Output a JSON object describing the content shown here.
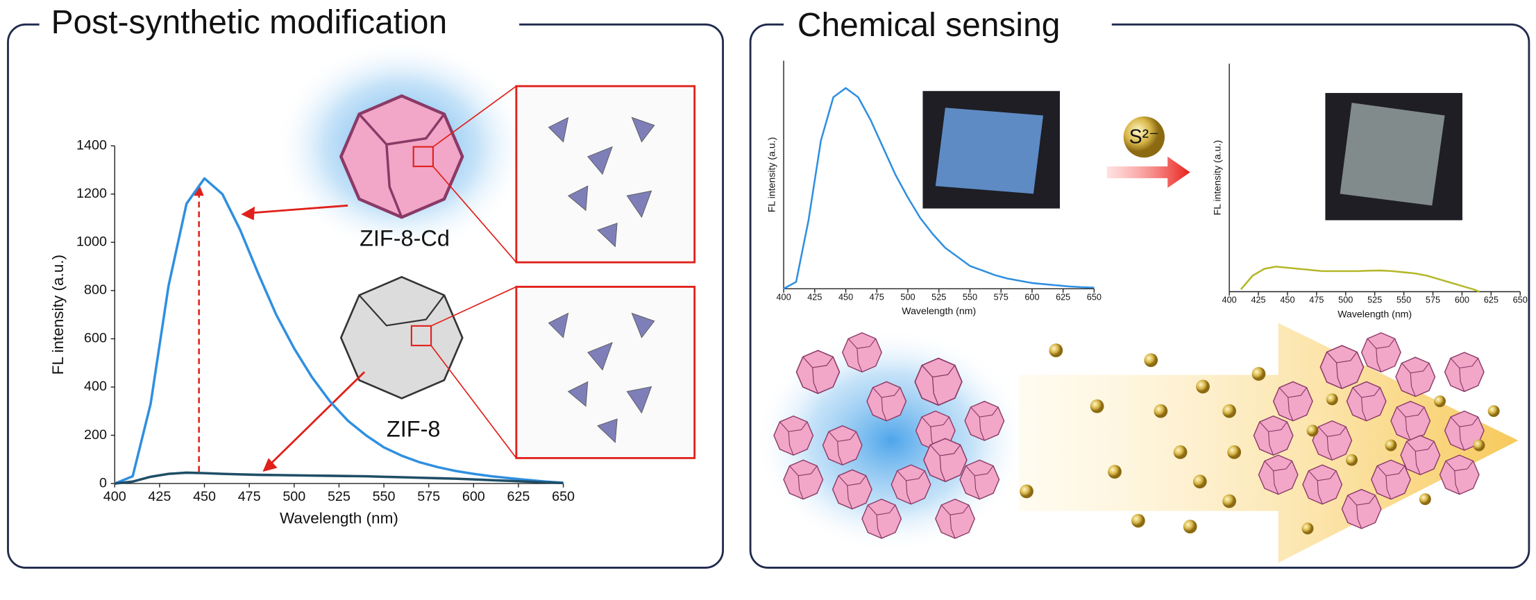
{
  "panels": [
    {
      "title": "Post-synthetic modification",
      "labels": [
        "ZIF-8-Cd",
        "ZIF-8"
      ]
    },
    {
      "title": "Chemical sensing",
      "ion": "S²⁻"
    }
  ],
  "chart_data": [
    {
      "type": "line",
      "xlabel": "Wavelength (nm)",
      "ylabel": "FL intensity (a.u.)",
      "x": [
        400,
        410,
        420,
        430,
        440,
        450,
        460,
        470,
        480,
        490,
        500,
        510,
        520,
        530,
        540,
        550,
        560,
        570,
        580,
        590,
        600,
        610,
        620,
        630,
        640,
        650
      ],
      "series": [
        {
          "color": "#2f8fe0",
          "values": [
            0,
            30,
            330,
            820,
            1160,
            1265,
            1200,
            1050,
            870,
            700,
            560,
            440,
            340,
            260,
            200,
            150,
            115,
            88,
            68,
            52,
            40,
            30,
            22,
            15,
            8,
            3
          ]
        },
        {
          "color": "#1f4e66",
          "values": [
            0,
            8,
            28,
            40,
            45,
            43,
            40,
            38,
            36,
            35,
            34,
            33,
            32,
            31,
            30,
            28,
            26,
            24,
            22,
            20,
            17,
            14,
            11,
            8,
            5,
            2
          ]
        }
      ],
      "xlim": [
        400,
        650
      ],
      "ylim": [
        0,
        1400
      ],
      "xticks": [
        400,
        425,
        450,
        475,
        500,
        525,
        550,
        575,
        600,
        625,
        650
      ],
      "yticks": [
        0,
        200,
        400,
        600,
        800,
        1000,
        1200,
        1400
      ]
    },
    {
      "type": "line",
      "xlabel": "Wavelength (nm)",
      "ylabel": "FL intensity (a.u.)",
      "x": [
        400,
        410,
        420,
        430,
        440,
        450,
        460,
        470,
        480,
        490,
        500,
        510,
        520,
        530,
        540,
        550,
        560,
        570,
        580,
        590,
        600,
        610,
        620,
        630,
        640,
        650
      ],
      "series": [
        {
          "color": "#2f8fe0",
          "values": [
            0,
            3,
            30,
            65,
            84,
            88,
            84,
            74,
            62,
            50,
            40,
            31,
            24,
            18,
            14,
            10,
            8,
            6,
            4.5,
            3.5,
            2.5,
            2,
            1.5,
            1,
            0.7,
            0.5
          ]
        }
      ],
      "xlim": [
        400,
        650
      ],
      "ylim": [
        0,
        100
      ],
      "xticks": [
        400,
        425,
        450,
        475,
        500,
        525,
        550,
        575,
        600,
        625,
        650
      ]
    },
    {
      "type": "line",
      "xlabel": "Wavelength (nm)",
      "ylabel": "FL intensity (a.u.)",
      "x": [
        410,
        420,
        430,
        440,
        450,
        460,
        470,
        480,
        490,
        500,
        510,
        520,
        530,
        540,
        550,
        560,
        570,
        580,
        590,
        600,
        610,
        615
      ],
      "series": [
        {
          "color": "#b5b82a",
          "values": [
            1,
            7,
            10,
            11,
            10.5,
            10,
            9.5,
            9,
            9,
            9,
            9,
            9.2,
            9.3,
            9,
            8.5,
            8,
            7,
            5.5,
            4,
            2.5,
            1,
            0
          ]
        }
      ],
      "xlim": [
        400,
        650
      ],
      "ylim": [
        0,
        100
      ],
      "xticks": [
        400,
        425,
        450,
        475,
        500,
        525,
        550,
        575,
        600,
        625,
        650
      ]
    }
  ]
}
